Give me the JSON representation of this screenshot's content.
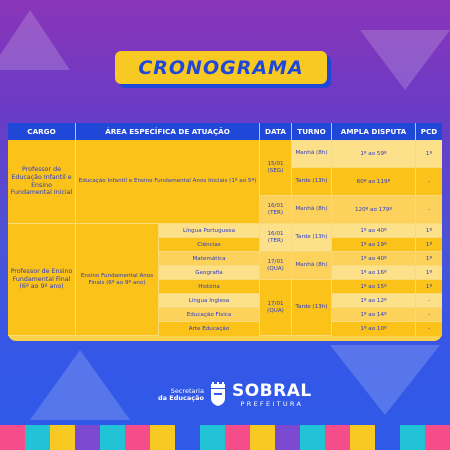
{
  "title": "CRONOGRAMA",
  "headers": [
    "CARGO",
    "ÁREA ESPECÍFICA DE ATUAÇÃO",
    "DATA",
    "TURNO",
    "AMPLA DISPUTA",
    "PCD"
  ],
  "group1": {
    "cargo": "Professor de Educação Infantil e Ensino Fundamental Inicial",
    "area": "Educação Infantil e Ensino Fundamental Anos Iniciais (1º ao 5º)",
    "data_a": "15/01 (SEG)",
    "data_b": "16/01 (TER)",
    "rows": [
      {
        "turno": "Manhã (8h)",
        "ampla": "1º ao 59º",
        "pcd": "1º"
      },
      {
        "turno": "Tarde (13h)",
        "ampla": "60º ao 119º",
        "pcd": "-"
      },
      {
        "turno": "Manhã (8h)",
        "ampla": "120º ao 179º",
        "pcd": "-"
      }
    ]
  },
  "group2": {
    "cargo": "Professor de Ensino Fundamental Final (6º ao 9º ano)",
    "area": "Ensino Fundamental Anos Finais (6º ao 9º ano)",
    "subjects": [
      "Língua Portuguesa",
      "Ciências",
      "Matemática",
      "Geografia",
      "História",
      "Língua Inglesa",
      "Educação Física",
      "Arte Educação"
    ],
    "data_a": "16/01 (TER)",
    "data_b": "17/01 (QUA)",
    "data_c": "17/01 (QUA)",
    "turno_a": "Tarde (13h)",
    "turno_b": "Manhã (8h)",
    "turno_c": "Tarde (13h)",
    "ampla": [
      "1º ao 40º",
      "1º ao 19º",
      "1º ao 40º",
      "1º ao 16º",
      "1º ao 15º",
      "1º ao 12º",
      "1º ao 14º",
      "1º ao 10º"
    ],
    "pcd": [
      "1º",
      "1º",
      "1º",
      "1º",
      "1º",
      "-",
      "-",
      "-"
    ]
  },
  "footer": {
    "secretaria_line1": "Secretaria",
    "secretaria_line2": "da Educação",
    "brand": "SOBRAL",
    "prefeitura": "PREFEITURA"
  },
  "colors": {
    "blue": "#1f47d8",
    "yellow": "#f9c923"
  }
}
